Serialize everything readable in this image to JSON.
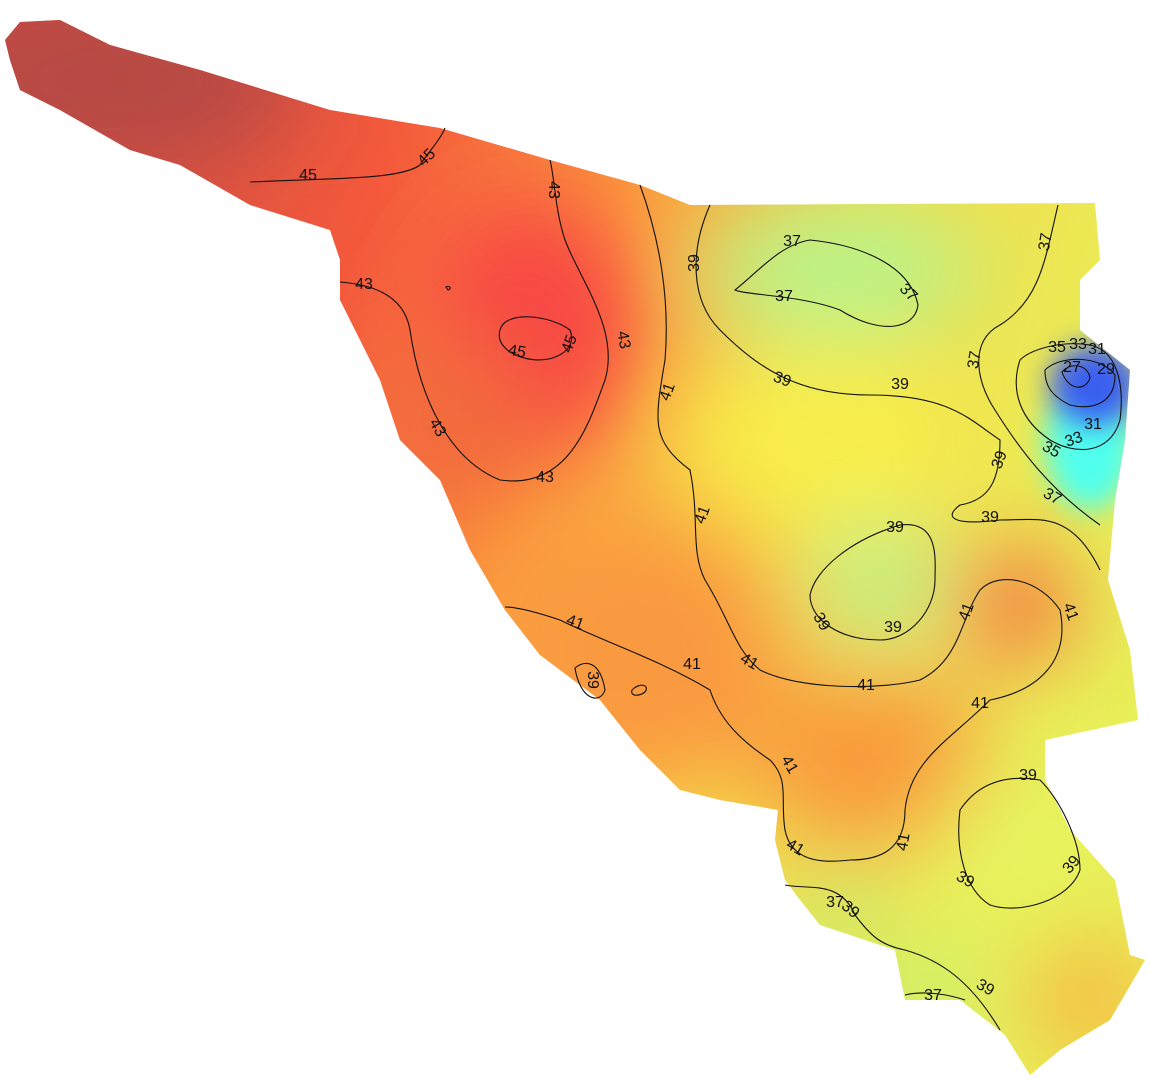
{
  "contour_labels": [
    45,
    45,
    43,
    43,
    45,
    45,
    43,
    39,
    37,
    37,
    37,
    37,
    37,
    35,
    33,
    31,
    27,
    29,
    31,
    33,
    35,
    37,
    39,
    39,
    39,
    39,
    41,
    43,
    43,
    41,
    39,
    39,
    39,
    41,
    41,
    41,
    39,
    41,
    41,
    41,
    41,
    41,
    39,
    41,
    41,
    39,
    39,
    37,
    39,
    37,
    39
  ]
}
